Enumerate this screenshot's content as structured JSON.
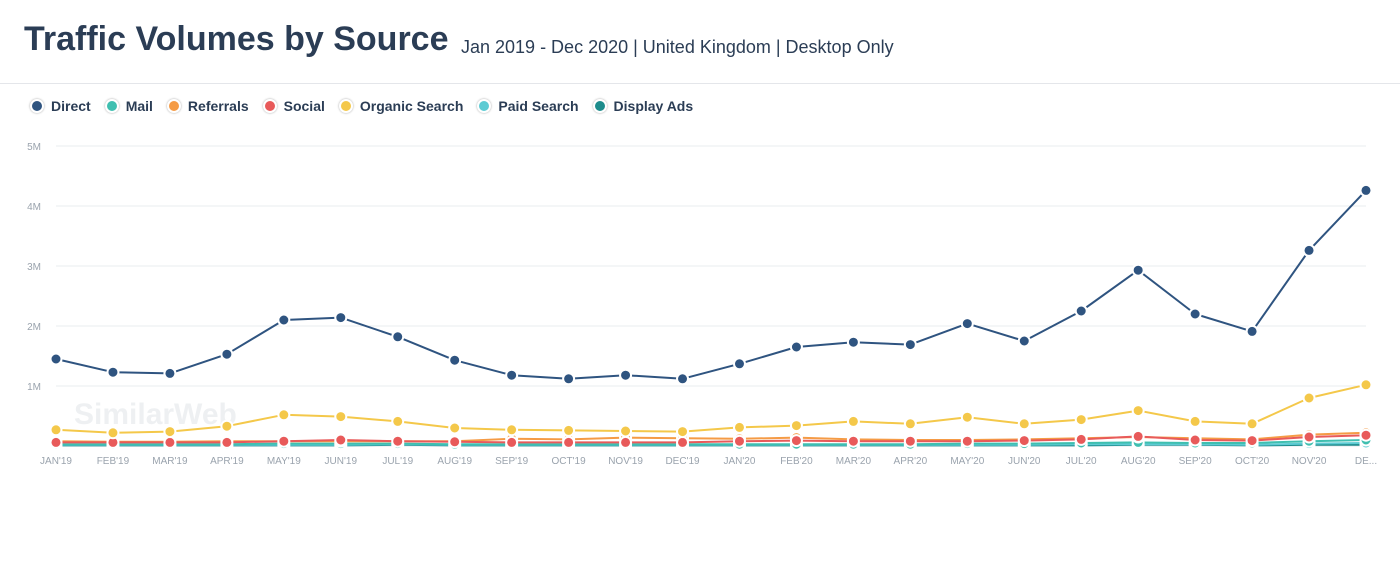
{
  "header": {
    "title": "Traffic Volumes by Source",
    "subtitle": "Jan 2019 - Dec 2020 | United Kingdom | Desktop Only"
  },
  "watermark": "SimilarWeb",
  "chart_data": {
    "type": "line",
    "title": "Traffic Volumes by Source",
    "subtitle": "Jan 2019 - Dec 2020 | United Kingdom | Desktop Only",
    "xlabel": "",
    "ylabel": "",
    "ylim": [
      0,
      5000000
    ],
    "yticks": [
      {
        "value": 1000000,
        "label": "1M"
      },
      {
        "value": 2000000,
        "label": "2M"
      },
      {
        "value": 3000000,
        "label": "3M"
      },
      {
        "value": 4000000,
        "label": "4M"
      },
      {
        "value": 5000000,
        "label": "5M"
      }
    ],
    "grid": true,
    "legend_position": "top-left",
    "categories": [
      "JAN'19",
      "FEB'19",
      "MAR'19",
      "APR'19",
      "MAY'19",
      "JUN'19",
      "JUL'19",
      "AUG'19",
      "SEP'19",
      "OCT'19",
      "NOV'19",
      "DEC'19",
      "JAN'20",
      "FEB'20",
      "MAR'20",
      "APR'20",
      "MAY'20",
      "JUN'20",
      "JUL'20",
      "AUG'20",
      "SEP'20",
      "OCT'20",
      "NOV'20",
      "DE..."
    ],
    "series": [
      {
        "name": "Direct",
        "color": "#2f5480",
        "values": [
          1450000,
          1230000,
          1210000,
          1530000,
          2100000,
          2140000,
          1820000,
          1430000,
          1180000,
          1120000,
          1180000,
          1120000,
          1370000,
          1650000,
          1730000,
          1690000,
          2040000,
          1750000,
          2250000,
          2930000,
          2200000,
          1910000,
          3260000,
          4260000
        ]
      },
      {
        "name": "Mail",
        "color": "#3fbfb0",
        "values": [
          30000,
          30000,
          30000,
          30000,
          40000,
          40000,
          40000,
          30000,
          30000,
          30000,
          30000,
          30000,
          30000,
          30000,
          30000,
          30000,
          40000,
          40000,
          50000,
          60000,
          50000,
          50000,
          80000,
          100000
        ]
      },
      {
        "name": "Referrals",
        "color": "#f59b45",
        "values": [
          80000,
          70000,
          70000,
          80000,
          80000,
          80000,
          80000,
          80000,
          120000,
          110000,
          140000,
          130000,
          120000,
          140000,
          110000,
          100000,
          100000,
          110000,
          130000,
          150000,
          130000,
          110000,
          190000,
          220000
        ]
      },
      {
        "name": "Social",
        "color": "#e85a5a",
        "values": [
          60000,
          60000,
          60000,
          60000,
          80000,
          100000,
          80000,
          70000,
          60000,
          60000,
          60000,
          60000,
          80000,
          90000,
          80000,
          80000,
          80000,
          90000,
          110000,
          160000,
          100000,
          90000,
          150000,
          180000
        ]
      },
      {
        "name": "Organic Search",
        "color": "#f4c84a",
        "values": [
          270000,
          220000,
          240000,
          330000,
          520000,
          490000,
          410000,
          300000,
          270000,
          260000,
          250000,
          240000,
          310000,
          340000,
          410000,
          370000,
          480000,
          370000,
          440000,
          590000,
          410000,
          370000,
          800000,
          1020000
        ]
      },
      {
        "name": "Paid Search",
        "color": "#5ccbd3",
        "values": [
          20000,
          20000,
          20000,
          20000,
          20000,
          20000,
          30000,
          20000,
          20000,
          20000,
          20000,
          20000,
          20000,
          20000,
          20000,
          20000,
          20000,
          20000,
          30000,
          30000,
          30000,
          20000,
          40000,
          50000
        ]
      },
      {
        "name": "Display Ads",
        "color": "#1d8c8c",
        "values": [
          10000,
          10000,
          10000,
          10000,
          10000,
          10000,
          20000,
          10000,
          10000,
          10000,
          10000,
          10000,
          10000,
          10000,
          10000,
          10000,
          10000,
          10000,
          10000,
          20000,
          20000,
          10000,
          20000,
          20000
        ]
      }
    ]
  }
}
